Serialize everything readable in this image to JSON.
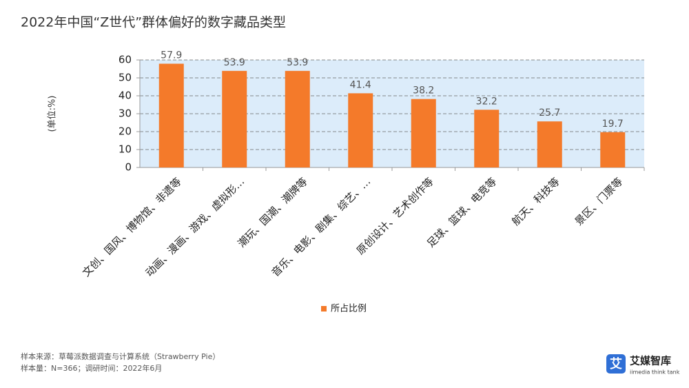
{
  "chart_data": {
    "type": "bar",
    "title": "2022年中国“Z世代”群体偏好的数字藏品类型",
    "y_label": "(单位:%)",
    "categories": [
      "文创、国风、博物馆、非遗等",
      "动画、漫画、游戏、虚拟形…",
      "潮玩、国潮、潮牌等",
      "音乐、电影、剧集、综艺、…",
      "原创设计、艺术创作等",
      "足球、篮球、电竞等",
      "航天、科技等",
      "景区、门票等"
    ],
    "series": [
      {
        "name": "所占比例",
        "color": "#f47a2a",
        "values": [
          57.9,
          53.9,
          53.9,
          41.4,
          38.2,
          32.2,
          25.7,
          19.7
        ]
      }
    ],
    "ylim": [
      0,
      60
    ],
    "yticks": [
      0,
      10,
      20,
      30,
      40,
      50,
      60
    ],
    "grid": true,
    "legend": "bottom"
  },
  "footer": {
    "source": "样本来源：草莓派数据调查与计算系统（Strawberry Pie）",
    "sample": "样本量：N=366；调研时间：2022年6月"
  },
  "logo": {
    "icon": "艾",
    "name": "艾媒智库",
    "tagline": "iimedia think tank"
  }
}
